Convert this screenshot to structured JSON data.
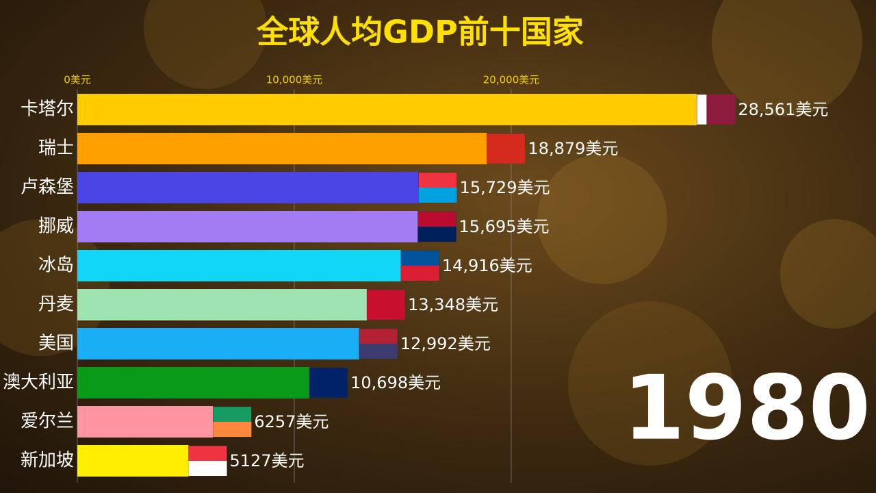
{
  "chart_data": {
    "type": "bar",
    "orientation": "horizontal",
    "title": "全球人均GDP前十国家",
    "annotation": "1980",
    "categories": [
      "卡塔尔",
      "瑞士",
      "卢森堡",
      "挪威",
      "冰岛",
      "丹麦",
      "美国",
      "澳大利亚",
      "爱尔兰",
      "新加坡"
    ],
    "values": [
      28561,
      18879,
      15729,
      15695,
      14916,
      13348,
      12992,
      10698,
      6257,
      5127
    ],
    "value_labels": [
      "28,561美元",
      "18,879美元",
      "15,729美元",
      "15,695美元",
      "14,916美元",
      "13,348美元",
      "12,992美元",
      "10,698美元",
      "6257美元",
      "5127美元"
    ],
    "colors": [
      "#ffcc00",
      "#ff9f00",
      "#4c45e6",
      "#a37bf2",
      "#12d6f5",
      "#9fe3b0",
      "#19aef5",
      "#0a9a1a",
      "#ff95a0",
      "#ffee00"
    ],
    "xlim": [
      0,
      30000
    ],
    "xticks": [
      {
        "value": 0,
        "label": "0美元"
      },
      {
        "value": 10000,
        "label": "10,000美元"
      },
      {
        "value": 20000,
        "label": "20,000美元"
      }
    ],
    "grid": true
  }
}
